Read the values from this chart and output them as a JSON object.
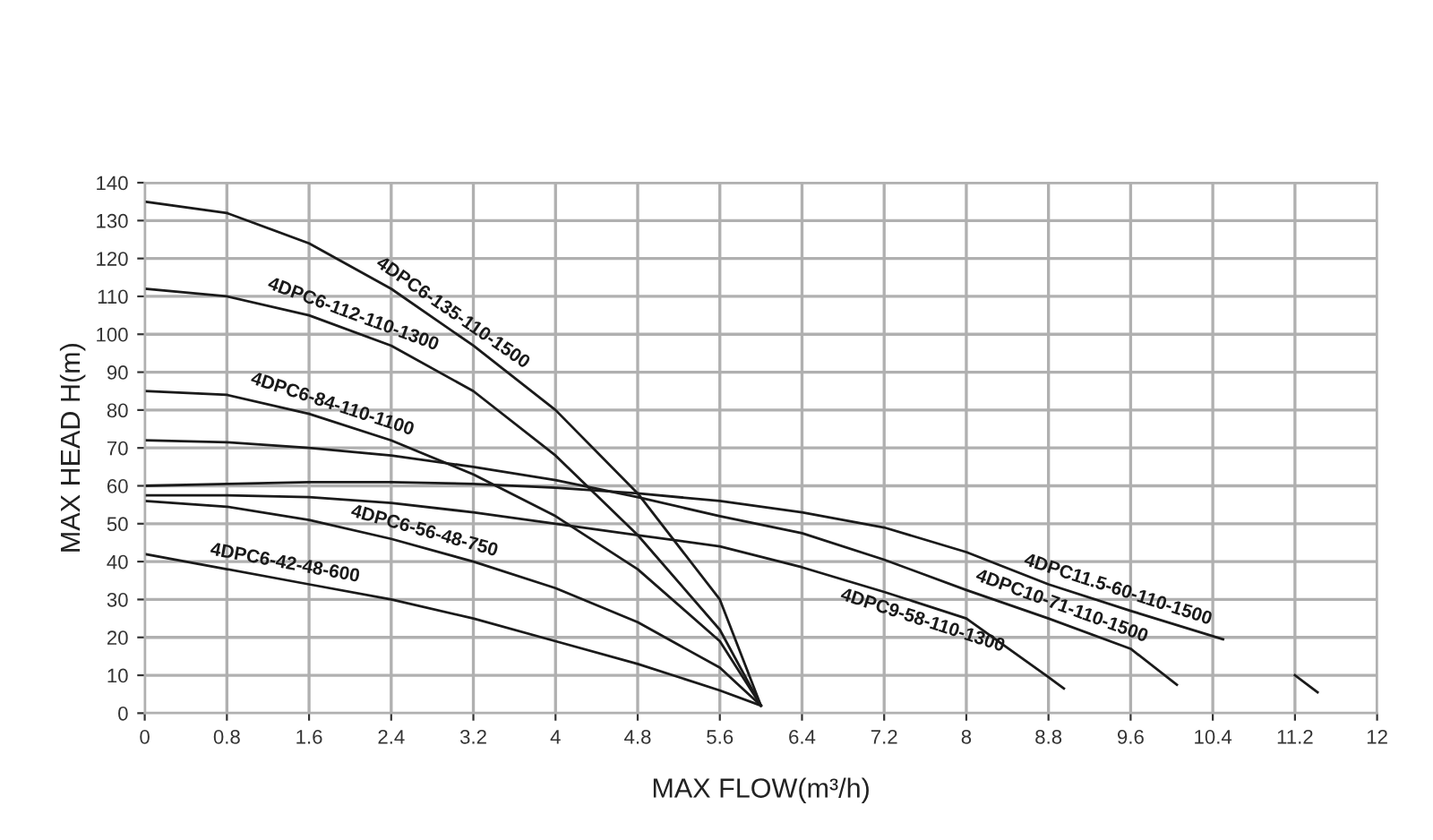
{
  "chart_data": {
    "type": "line",
    "xlabel": "MAX FLOW(m³/h)",
    "ylabel": "MAX HEAD H(m)",
    "xlim": [
      0,
      12
    ],
    "ylim": [
      0,
      140
    ],
    "xticks": [
      0,
      0.8,
      1.6,
      2.4,
      3.2,
      4,
      4.8,
      5.6,
      6.4,
      7.2,
      8,
      8.8,
      9.6,
      10.4,
      11.2,
      12
    ],
    "yticks": [
      0,
      10,
      20,
      30,
      40,
      50,
      60,
      70,
      80,
      90,
      100,
      110,
      120,
      130,
      140
    ],
    "grid": true,
    "legend": false,
    "marker": "none",
    "line_style": "solid",
    "series": [
      {
        "name": "4DPC6-135-110-1500",
        "color": "#1a1a1a",
        "x": [
          0,
          0.8,
          1.6,
          2.4,
          3.2,
          4,
          4.8,
          5.6,
          6
        ],
        "values": [
          135,
          132,
          124,
          112,
          97,
          80,
          58,
          30,
          2
        ]
      },
      {
        "name": "4DPC6-112-110-1300",
        "color": "#1a1a1a",
        "x": [
          0,
          0.8,
          1.6,
          2.4,
          3.2,
          4,
          4.8,
          5.6,
          6
        ],
        "values": [
          112,
          110,
          105,
          97,
          85,
          68,
          47,
          22,
          2
        ]
      },
      {
        "name": "4DPC6-84-110-1100",
        "color": "#1a1a1a",
        "x": [
          0,
          0.8,
          1.6,
          2.4,
          3.2,
          4,
          4.8,
          5.6,
          6
        ],
        "values": [
          85,
          84,
          79,
          72,
          63,
          52,
          38,
          19,
          2
        ]
      },
      {
        "name": "4DPC6-56-48-750",
        "color": "#1a1a1a",
        "x": [
          0,
          0.8,
          1.6,
          2.4,
          3.2,
          4,
          4.8,
          5.6,
          6
        ],
        "values": [
          56,
          54.5,
          51,
          46,
          40,
          33,
          24,
          12,
          2
        ]
      },
      {
        "name": "4DPC6-42-48-600",
        "color": "#1a1a1a",
        "x": [
          0,
          0.8,
          1.6,
          2.4,
          3.2,
          4,
          4.8,
          5.6,
          6
        ],
        "values": [
          42,
          38,
          34,
          30,
          25,
          19,
          13,
          6,
          2
        ]
      },
      {
        "name": "4DPC11.5-60-110-1500",
        "color": "#1a1a1a",
        "x": [
          0,
          0.8,
          1.6,
          2.4,
          3.2,
          4,
          4.8,
          5.6,
          6.4,
          7.2,
          8,
          8.8,
          9.6,
          10.5,
          10.8,
          11.2,
          11.42
        ],
        "values": [
          60,
          60.5,
          61,
          61,
          60.5,
          59.5,
          58,
          56,
          53,
          49,
          42.5,
          34,
          27,
          19.5,
          null,
          10,
          5.5
        ]
      },
      {
        "name": "4DPC10-71-110-1500",
        "color": "#1a1a1a",
        "x": [
          0,
          0.8,
          1.6,
          2.4,
          3.2,
          4,
          4.8,
          5.6,
          6.4,
          7.2,
          8,
          8.8,
          9.6,
          10.05
        ],
        "values": [
          72,
          71.5,
          70,
          68,
          65,
          61.5,
          57,
          52,
          47.5,
          40.5,
          32.5,
          25,
          17,
          7.5
        ]
      },
      {
        "name": "4DPC9-58-110-1300",
        "color": "#1a1a1a",
        "x": [
          0,
          0.8,
          1.6,
          2.4,
          3.2,
          4,
          4.8,
          5.6,
          6.4,
          7.2,
          8,
          8.8,
          8.95
        ],
        "values": [
          57.5,
          57.5,
          57,
          55.5,
          53,
          50,
          47,
          44,
          38.5,
          32,
          25,
          9.5,
          6.5
        ]
      }
    ]
  }
}
